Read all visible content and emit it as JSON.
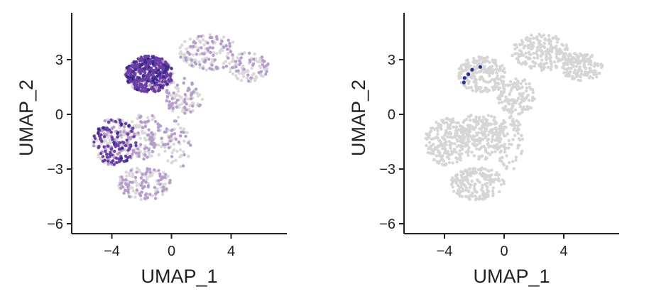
{
  "chart_data": [
    {
      "type": "scatter",
      "title": "",
      "xlabel": "UMAP_1",
      "ylabel": "UMAP_2",
      "xlim": [
        -6.2,
        8
      ],
      "ylim": [
        -6.5,
        5.5
      ],
      "xticks": [
        {
          "value": -4,
          "label": "−4"
        },
        {
          "value": 0,
          "label": "0"
        },
        {
          "value": 4,
          "label": "4"
        }
      ],
      "yticks": [
        {
          "value": 3,
          "label": "3"
        },
        {
          "value": 0,
          "label": "0"
        },
        {
          "value": -3,
          "label": "−3"
        },
        {
          "value": -6,
          "label": "−6"
        }
      ],
      "grid": false,
      "legend": "none",
      "colors": {
        "low": "#d9d9d9",
        "mid": "#b79dce",
        "high": "#6a3ea5",
        "max": "#3b2c8f"
      },
      "point_groups": [
        {
          "name": "low",
          "count": 650,
          "seed": 11
        },
        {
          "name": "mid",
          "count": 420,
          "seed": 23
        },
        {
          "name": "high",
          "count": 380,
          "seed": 37
        },
        {
          "name": "max",
          "count": 60,
          "seed": 41
        }
      ]
    },
    {
      "type": "scatter",
      "title": "",
      "xlabel": "UMAP_1",
      "ylabel": "UMAP_2",
      "xlim": [
        -6.2,
        8
      ],
      "ylim": [
        -6.5,
        5.5
      ],
      "xticks": [
        {
          "value": -4,
          "label": "−4"
        },
        {
          "value": 0,
          "label": "0"
        },
        {
          "value": 4,
          "label": "4"
        }
      ],
      "yticks": [
        {
          "value": 3,
          "label": "3"
        },
        {
          "value": 0,
          "label": "0"
        },
        {
          "value": -3,
          "label": "−3"
        },
        {
          "value": -6,
          "label": "−6"
        }
      ],
      "grid": false,
      "legend": "none",
      "colors": {
        "background": "#d6d6d6",
        "highlight": "#27348b"
      },
      "point_groups": [
        {
          "name": "background",
          "count": 1400,
          "seed": 53
        }
      ],
      "highlight_points": [
        {
          "x": -2.7,
          "y": 1.75
        },
        {
          "x": -2.65,
          "y": 2.0
        },
        {
          "x": -2.4,
          "y": 2.2
        },
        {
          "x": -2.15,
          "y": 2.45
        },
        {
          "x": -1.6,
          "y": 2.6
        }
      ]
    }
  ]
}
